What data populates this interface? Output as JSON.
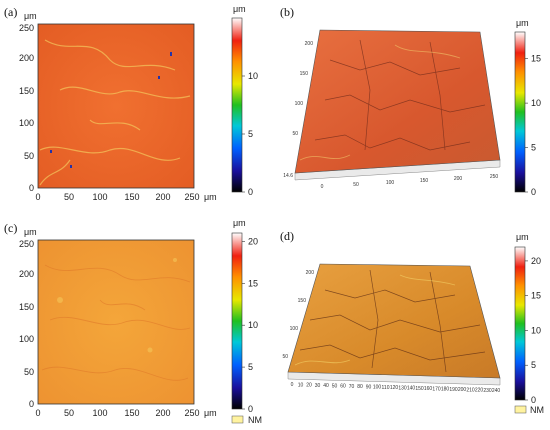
{
  "panels": [
    {
      "label": "(a)",
      "type": "2d",
      "axis_unit": "μm",
      "x_ticks": [
        "0",
        "50",
        "100",
        "150",
        "200",
        "250"
      ],
      "y_ticks": [
        "0",
        "50",
        "100",
        "150",
        "200",
        "250"
      ],
      "colorbar": {
        "unit": "μm",
        "ticks": [
          "0",
          "5",
          "10"
        ],
        "max": 15
      }
    },
    {
      "label": "(b)",
      "type": "3d",
      "x_ticks": [
        "0",
        "50",
        "100",
        "150",
        "200",
        "250"
      ],
      "y_ticks": [
        "50",
        "100",
        "150",
        "200"
      ],
      "z_tick": "14.6",
      "colorbar": {
        "unit": "μm",
        "ticks": [
          "0",
          "5",
          "10",
          "15"
        ],
        "max": 18
      }
    },
    {
      "label": "(c)",
      "type": "2d",
      "axis_unit": "μm",
      "x_ticks": [
        "0",
        "50",
        "100",
        "150",
        "200",
        "250"
      ],
      "y_ticks": [
        "0",
        "50",
        "100",
        "150",
        "200",
        "250"
      ],
      "colorbar": {
        "unit": "μm",
        "ticks": [
          "0",
          "5",
          "10",
          "15",
          "20"
        ],
        "max": 21
      },
      "legend": "NM"
    },
    {
      "label": "(d)",
      "type": "3d",
      "x_ticks": [
        "0",
        "10",
        "20",
        "30",
        "40",
        "50",
        "60",
        "70",
        "80",
        "90",
        "100",
        "110",
        "120",
        "130",
        "140",
        "150",
        "160",
        "170",
        "180",
        "190",
        "200",
        "210",
        "220",
        "230",
        "240"
      ],
      "y_ticks": [
        "50",
        "100",
        "150",
        "200"
      ],
      "colorbar": {
        "unit": "μm",
        "ticks": [
          "0",
          "5",
          "10",
          "15",
          "20"
        ],
        "max": 22
      },
      "legend": "NM"
    }
  ],
  "colors": {
    "surface_a": "#ee6a2a",
    "surface_b": "#e06a35",
    "surface_c": "#f0a035",
    "surface_d": "#e0902e",
    "legend_swatch": "#fff3a0"
  }
}
